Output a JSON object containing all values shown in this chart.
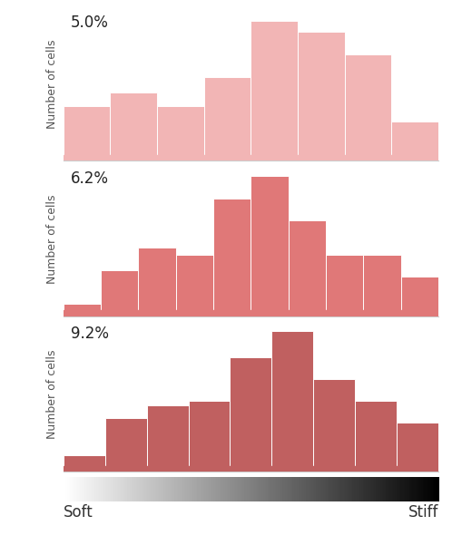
{
  "panels": [
    {
      "label": "5.0%",
      "bar_color": "#f2b5b5",
      "edge_color": "#ffffff",
      "bars": [
        2.2,
        2.8,
        2.2,
        3.5,
        6.0,
        5.5,
        4.5,
        1.5
      ],
      "baseline": 0.3
    },
    {
      "label": "6.2%",
      "bar_color": "#e07878",
      "edge_color": "#ffffff",
      "bars": [
        0.3,
        1.8,
        2.8,
        2.5,
        5.0,
        6.0,
        4.0,
        2.5,
        2.5,
        1.5
      ],
      "baseline": 0.3
    },
    {
      "label": "9.2%",
      "bar_color": "#c06060",
      "edge_color": "#ffffff",
      "bars": [
        0.5,
        2.2,
        2.8,
        3.0,
        5.0,
        6.2,
        4.0,
        3.0,
        2.0
      ],
      "baseline": 0.3
    }
  ],
  "ylabel": "Number of cells",
  "xlabel_left": "Soft",
  "xlabel_right": "Stiff",
  "background_color": "#ffffff",
  "label_fontsize": 12,
  "ylabel_fontsize": 9,
  "xlabel_fontsize": 12,
  "panel_border_color": "#cccccc",
  "baseline_color_1": "#f2b5b5",
  "baseline_color_2": "#e07878",
  "baseline_color_3": "#c06060"
}
